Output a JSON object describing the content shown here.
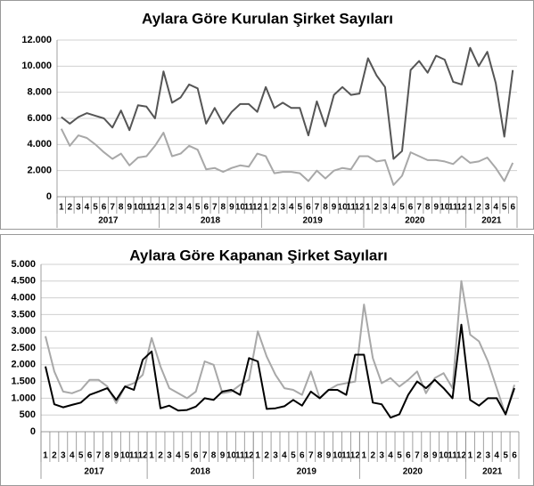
{
  "chart_data": [
    {
      "type": "line",
      "title": "Aylara Göre Kurulan Şirket Sayıları",
      "groups": [
        {
          "label": "2017",
          "categories": [
            "1",
            "2",
            "3",
            "4",
            "5",
            "6",
            "7",
            "8",
            "9",
            "10",
            "11",
            "12"
          ]
        },
        {
          "label": "2018",
          "categories": [
            "1",
            "2",
            "3",
            "4",
            "5",
            "6",
            "7",
            "8",
            "9",
            "10",
            "11",
            "12"
          ]
        },
        {
          "label": "2019",
          "categories": [
            "1",
            "2",
            "3",
            "4",
            "5",
            "6",
            "7",
            "8",
            "9",
            "10",
            "11",
            "12"
          ]
        },
        {
          "label": "2020",
          "categories": [
            "1",
            "2",
            "3",
            "4",
            "5",
            "6",
            "7",
            "8",
            "9",
            "10",
            "11",
            "12"
          ]
        },
        {
          "label": "2021",
          "categories": [
            "1",
            "2",
            "3",
            "4",
            "5",
            "6"
          ]
        }
      ],
      "ylim": [
        0,
        12000
      ],
      "yticks": [
        0,
        {
          "value": 2000,
          "label": "2.000"
        },
        {
          "value": 4000,
          "label": "4.000"
        },
        {
          "value": 6000,
          "label": "6.000"
        },
        {
          "value": 8000,
          "label": "8.000"
        },
        {
          "value": 10000,
          "label": "10.000"
        },
        {
          "value": 12000,
          "label": "12.000"
        }
      ],
      "grid": true,
      "series": [
        {
          "color": "#555555",
          "values": [
            6100,
            5600,
            6100,
            6400,
            6200,
            6000,
            5300,
            6600,
            5100,
            7000,
            6900,
            6000,
            9600,
            7200,
            7600,
            8600,
            8300,
            5600,
            6800,
            5600,
            6500,
            7100,
            7100,
            6500,
            8400,
            6800,
            7200,
            6800,
            6800,
            4700,
            7300,
            5400,
            7800,
            8400,
            7800,
            7900,
            10600,
            9300,
            8400,
            2900,
            3500,
            9700,
            10400,
            9500,
            10800,
            10500,
            8800,
            8600,
            11400,
            10000,
            11100,
            8700,
            4600,
            9700
          ]
        },
        {
          "color": "#a8a8a8",
          "values": [
            5200,
            3900,
            4700,
            4500,
            4000,
            3400,
            2900,
            3300,
            2400,
            3000,
            3100,
            3900,
            4900,
            3100,
            3300,
            3900,
            3600,
            2100,
            2200,
            1900,
            2200,
            2400,
            2300,
            3300,
            3100,
            1800,
            1900,
            1900,
            1800,
            1200,
            2000,
            1400,
            2000,
            2200,
            2100,
            3100,
            3100,
            2700,
            2800,
            900,
            1600,
            3400,
            3100,
            2800,
            2800,
            2700,
            2500,
            3100,
            2600,
            2700,
            3000,
            2200,
            1200,
            2600
          ]
        }
      ]
    },
    {
      "type": "line",
      "title": "Aylara Göre Kapanan Şirket Sayıları",
      "groups": [
        {
          "label": "2017",
          "categories": [
            "1",
            "2",
            "3",
            "4",
            "5",
            "6",
            "7",
            "8",
            "9",
            "10",
            "11",
            "12"
          ]
        },
        {
          "label": "2018",
          "categories": [
            "1",
            "2",
            "3",
            "4",
            "5",
            "6",
            "7",
            "8",
            "9",
            "10",
            "11",
            "12"
          ]
        },
        {
          "label": "2019",
          "categories": [
            "1",
            "2",
            "3",
            "4",
            "5",
            "6",
            "7",
            "8",
            "9",
            "10",
            "11",
            "12"
          ]
        },
        {
          "label": "2020",
          "categories": [
            "1",
            "2",
            "3",
            "4",
            "5",
            "6",
            "7",
            "8",
            "9",
            "10",
            "11",
            "12"
          ]
        },
        {
          "label": "2021",
          "categories": [
            "1",
            "2",
            "3",
            "4",
            "5",
            "6"
          ]
        }
      ],
      "ylim": [
        0,
        5000
      ],
      "yticks": [
        0,
        500,
        {
          "value": 1000,
          "label": "1.000"
        },
        {
          "value": 1500,
          "label": "1.500"
        },
        {
          "value": 2000,
          "label": "2.000"
        },
        {
          "value": 2500,
          "label": "2.500"
        },
        {
          "value": 3000,
          "label": "3.000"
        },
        {
          "value": 3500,
          "label": "3.500"
        },
        {
          "value": 4000,
          "label": "4.000"
        },
        {
          "value": 4500,
          "label": "4.500"
        },
        {
          "value": 5000,
          "label": "5.000"
        }
      ],
      "grid": true,
      "series": [
        {
          "color": "#000000",
          "values": [
            1950,
            820,
            730,
            800,
            870,
            1100,
            1200,
            1300,
            950,
            1350,
            1250,
            2150,
            2400,
            700,
            780,
            630,
            650,
            750,
            1000,
            950,
            1200,
            1250,
            1100,
            2200,
            2100,
            680,
            700,
            760,
            950,
            780,
            1200,
            1000,
            1250,
            1250,
            1100,
            2300,
            2300,
            870,
            820,
            420,
            520,
            1100,
            1500,
            1300,
            1550,
            1300,
            1000,
            3200,
            950,
            780,
            1000,
            1000,
            520,
            1300
          ]
        },
        {
          "color": "#a8a8a8",
          "values": [
            2850,
            1800,
            1200,
            1150,
            1250,
            1550,
            1550,
            1350,
            850,
            1350,
            1450,
            1700,
            2800,
            1950,
            1300,
            1150,
            1000,
            1200,
            2100,
            2000,
            1150,
            1200,
            1400,
            1550,
            3000,
            2250,
            1700,
            1300,
            1250,
            1100,
            1800,
            1000,
            1250,
            1400,
            1450,
            1500,
            3800,
            2200,
            1450,
            1600,
            1350,
            1550,
            1800,
            1150,
            1600,
            1750,
            1300,
            4500,
            2900,
            2700,
            2100,
            1300,
            500,
            1400
          ]
        }
      ]
    }
  ]
}
